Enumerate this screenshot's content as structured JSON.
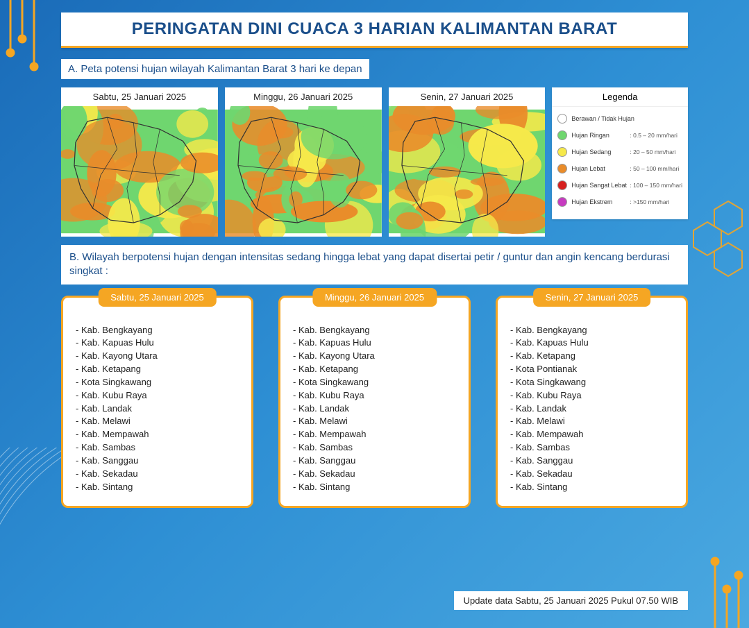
{
  "title": "PERINGATAN DINI CUACA 3 HARIAN KALIMANTAN BARAT",
  "section_a_label": "A. Peta potensi hujan wilayah Kalimantan Barat 3 hari ke depan",
  "maps": [
    {
      "date": "Sabtu, 25 Januari 2025"
    },
    {
      "date": "Minggu, 26 Januari 2025"
    },
    {
      "date": "Senin, 27 Januari 2025"
    }
  ],
  "map_colors": {
    "cloudy": "#ffffff",
    "light": "#6fd66f",
    "moderate": "#f6e94a",
    "heavy": "#e98c2a",
    "vheavy": "#d6201f",
    "extreme": "#c63bc0",
    "border": "#333333"
  },
  "legend": {
    "title": "Legenda",
    "items": [
      {
        "color": "#ffffff",
        "label": "Berawan / Tidak Hujan",
        "range": ""
      },
      {
        "color": "#6fd66f",
        "label": "Hujan Ringan",
        "range": ": 0.5 – 20 mm/hari"
      },
      {
        "color": "#f6e94a",
        "label": "Hujan Sedang",
        "range": ": 20 – 50 mm/hari"
      },
      {
        "color": "#e98c2a",
        "label": "Hujan Lebat",
        "range": ": 50 – 100 mm/hari"
      },
      {
        "color": "#d6201f",
        "label": "Hujan Sangat Lebat",
        "range": ": 100 – 150 mm/hari"
      },
      {
        "color": "#c63bc0",
        "label": "Hujan Ekstrem",
        "range": ": >150 mm/hari"
      }
    ]
  },
  "section_b_label": "B. Wilayah berpotensi hujan dengan intensitas sedang hingga lebat yang dapat disertai petir / guntur dan angin kencang berdurasi singkat :",
  "region_lists": [
    {
      "date": "Sabtu, 25 Januari 2025",
      "items": [
        "Kab. Bengkayang",
        "Kab. Kapuas Hulu",
        "Kab. Kayong Utara",
        "Kab. Ketapang",
        "Kota Singkawang",
        "Kab. Kubu Raya",
        "Kab. Landak",
        "Kab. Melawi",
        "Kab. Mempawah",
        "Kab. Sambas",
        "Kab. Sanggau",
        "Kab. Sekadau",
        "Kab. Sintang"
      ]
    },
    {
      "date": "Minggu, 26 Januari 2025",
      "items": [
        "Kab. Bengkayang",
        "Kab. Kapuas Hulu",
        "Kab. Kayong Utara",
        "Kab. Ketapang",
        "Kota Singkawang",
        "Kab. Kubu Raya",
        "Kab. Landak",
        "Kab. Melawi",
        "Kab. Mempawah",
        "Kab. Sambas",
        "Kab. Sanggau",
        "Kab. Sekadau",
        "Kab. Sintang"
      ]
    },
    {
      "date": "Senin, 27 Januari 2025",
      "items": [
        "Kab. Bengkayang",
        "Kab. Kapuas Hulu",
        "Kab. Ketapang",
        "Kota Pontianak",
        "Kota Singkawang",
        "Kab. Kubu Raya",
        "Kab. Landak",
        "Kab. Melawi",
        "Kab. Mempawah",
        "Kab. Sambas",
        "Kab. Sanggau",
        "Kab. Sekadau",
        "Kab. Sintang"
      ]
    }
  ],
  "update_text": "Update data Sabtu, 25 Januari 2025 Pukul 07.50 WIB",
  "accent_color": "#f5a623",
  "title_color": "#1a4e8a"
}
